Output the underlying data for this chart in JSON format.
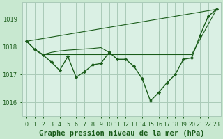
{
  "background_color": "#c8e8d0",
  "plot_bg_color": "#daf0e4",
  "grid_color": "#aacab8",
  "line_color": "#1a5c1a",
  "marker_color": "#1a5c1a",
  "title": "Graphe pression niveau de la mer (hPa)",
  "xlim": [
    -0.5,
    23.5
  ],
  "ylim": [
    1015.5,
    1019.6
  ],
  "yticks": [
    1016,
    1017,
    1018,
    1019
  ],
  "xticks": [
    0,
    1,
    2,
    3,
    4,
    5,
    6,
    7,
    8,
    9,
    10,
    11,
    12,
    13,
    14,
    15,
    16,
    17,
    18,
    19,
    20,
    21,
    22,
    23
  ],
  "series_main": {
    "x": [
      0,
      1,
      2,
      3,
      4,
      5,
      6,
      7,
      8,
      9,
      10,
      11,
      12,
      13,
      14,
      15,
      16,
      17,
      18,
      19,
      20,
      21,
      22,
      23
    ],
    "y": [
      1018.2,
      1017.9,
      1017.7,
      1017.45,
      1017.15,
      1017.65,
      1016.9,
      1017.1,
      1017.35,
      1017.4,
      1017.8,
      1017.55,
      1017.55,
      1017.3,
      1016.85,
      1016.05,
      1016.35,
      1016.7,
      1017.0,
      1017.55,
      1017.6,
      1018.4,
      1019.1,
      1019.35
    ]
  },
  "series_top_line": {
    "x": [
      0,
      23
    ],
    "y": [
      1018.2,
      1019.35
    ]
  },
  "series_flat_line": {
    "x": [
      0,
      1,
      2,
      3,
      4,
      5,
      6,
      7,
      8,
      9,
      10,
      11,
      12,
      13,
      14,
      15,
      16,
      17,
      18,
      19,
      20,
      23
    ],
    "y": [
      1018.2,
      1017.9,
      1017.72,
      1017.72,
      1017.72,
      1017.72,
      1017.72,
      1017.72,
      1017.72,
      1017.72,
      1017.72,
      1017.72,
      1017.72,
      1017.72,
      1017.72,
      1017.72,
      1017.72,
      1017.72,
      1017.72,
      1017.72,
      1017.72,
      1019.35
    ]
  },
  "series_wedge": {
    "x": [
      0,
      1,
      2,
      3,
      4,
      5,
      6,
      7,
      8,
      9,
      10
    ],
    "y": [
      1018.2,
      1017.9,
      1017.72,
      1017.8,
      1017.85,
      1017.88,
      1017.9,
      1017.92,
      1017.94,
      1017.97,
      1017.8
    ]
  },
  "title_fontsize": 7.5,
  "tick_fontsize": 6,
  "tick_color": "#1a5c1a",
  "title_color": "#1a5c1a",
  "linewidth_main": 1.0,
  "linewidth_extra": 0.8
}
